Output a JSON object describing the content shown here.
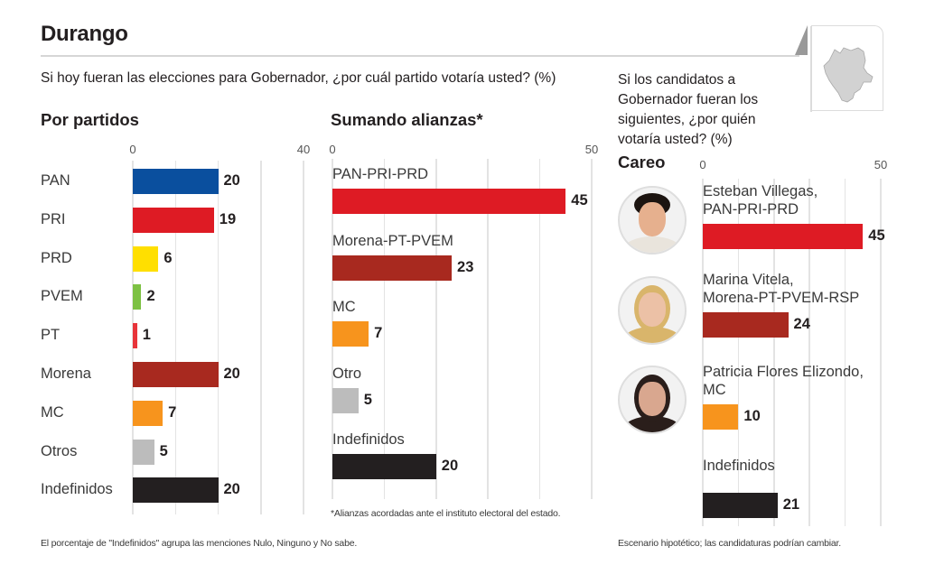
{
  "header": {
    "title": "Durango",
    "question_party": "Si hoy fueran las elecciones para Gobernador, ¿por cuál partido votaría usted? (%)",
    "question_candidates": "Si los candidatos a Gobernador fueran los siguientes, ¿por quién votaría usted? (%)",
    "map_icon": "durango-state-map-icon"
  },
  "notes": {
    "indefinidos": "El porcentaje de \"Indefinidos\" agrupa las menciones Nulo, Ninguno y No sabe.",
    "alianzas": "*Alianzas acordadas ante el instituto electoral del estado.",
    "escenario": "Escenario hipotético; las candidaturas podrían cambiar."
  },
  "chart_data": [
    {
      "type": "bar",
      "orientation": "horizontal",
      "title": "Por partidos",
      "xlim": [
        0,
        40
      ],
      "tick_labels": [
        "0",
        "40"
      ],
      "gridlines": [
        0,
        10,
        20,
        30,
        40
      ],
      "categories": [
        "PAN",
        "PRI",
        "PRD",
        "PVEM",
        "PT",
        "Morena",
        "MC",
        "Otros",
        "Indefinidos"
      ],
      "values": [
        20,
        19,
        6,
        2,
        1,
        20,
        7,
        5,
        20
      ],
      "colors": [
        "#0a4f9e",
        "#de1b24",
        "#ffdf00",
        "#7dc143",
        "#e8343a",
        "#a8291f",
        "#f7941d",
        "#bcbcbc",
        "#231f20"
      ]
    },
    {
      "type": "bar",
      "orientation": "horizontal",
      "title": "Sumando alianzas*",
      "xlim": [
        0,
        50
      ],
      "tick_labels": [
        "0",
        "50"
      ],
      "gridlines": [
        0,
        10,
        20,
        30,
        40,
        50
      ],
      "categories": [
        "PAN-PRI-PRD",
        "Morena-PT-PVEM",
        "MC",
        "Otro",
        "Indefinidos"
      ],
      "values": [
        45,
        23,
        7,
        5,
        20
      ],
      "colors": [
        "#de1b24",
        "#a8291f",
        "#f7941d",
        "#bcbcbc",
        "#231f20"
      ]
    },
    {
      "type": "bar",
      "orientation": "horizontal",
      "title": "Careo",
      "xlim": [
        0,
        50
      ],
      "tick_labels": [
        "0",
        "50"
      ],
      "gridlines": [
        0,
        10,
        20,
        30,
        40,
        50
      ],
      "categories": [
        "Esteban Villegas, PAN-PRI-PRD",
        "Marina Vitela, Morena-PT-PVEM-RSP",
        "Patricia Flores Elizondo, MC",
        "Indefinidos"
      ],
      "label_lines": [
        [
          "Esteban Villegas,",
          "PAN-PRI-PRD"
        ],
        [
          "Marina Vitela,",
          "Morena-PT-PVEM-RSP"
        ],
        [
          "Patricia Flores Elizondo,",
          "MC"
        ],
        [
          "Indefinidos"
        ]
      ],
      "values": [
        45,
        24,
        10,
        21
      ],
      "colors": [
        "#de1b24",
        "#a8291f",
        "#f7941d",
        "#231f20"
      ],
      "photos": [
        "candidate-photo-esteban-villegas",
        "candidate-photo-marina-vitela",
        "candidate-photo-patricia-flores",
        null
      ]
    }
  ]
}
